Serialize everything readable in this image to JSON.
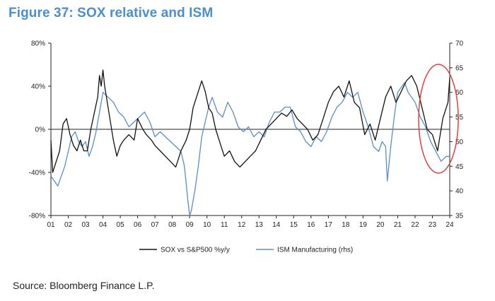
{
  "title": "Figure 37: SOX relative and ISM",
  "source": "Source: Bloomberg Finance L.P.",
  "colors": {
    "sox": "#111111",
    "ism": "#5b8ec7",
    "highlight": "#e04040",
    "axis": "#222222"
  },
  "chart_data": {
    "type": "line",
    "title": "Figure 37: SOX relative and ISM",
    "x_ticks": [
      "01",
      "02",
      "03",
      "04",
      "05",
      "06",
      "07",
      "08",
      "09",
      "10",
      "11",
      "12",
      "13",
      "14",
      "15",
      "16",
      "17",
      "18",
      "19",
      "20",
      "21",
      "22",
      "23",
      "24"
    ],
    "x_range": [
      2001.0,
      2024.0
    ],
    "y_left": {
      "ticks": [
        "80%",
        "40%",
        "0%",
        "-40%",
        "-80%"
      ],
      "values": [
        80,
        40,
        0,
        -40,
        -80
      ],
      "range": [
        -80,
        80
      ]
    },
    "y_right": {
      "ticks": [
        "70",
        "65",
        "60",
        "55",
        "50",
        "45",
        "40",
        "35"
      ],
      "values": [
        70,
        65,
        60,
        55,
        50,
        45,
        40,
        35
      ],
      "range": [
        35,
        70
      ]
    },
    "legend": [
      "SOX vs S&P500 %y/y",
      "ISM Manufacturing (rhs)"
    ],
    "legend_position": "bottom-center",
    "annotation": "red ellipse highlighting 2023-2024",
    "series": [
      {
        "name": "SOX vs S&P500 %y/y",
        "axis": "left",
        "x": [
          2001.0,
          2001.1,
          2001.3,
          2001.5,
          2001.7,
          2001.9,
          2002.1,
          2002.3,
          2002.5,
          2002.7,
          2002.9,
          2003.1,
          2003.3,
          2003.5,
          2003.7,
          2003.8,
          2003.9,
          2004.0,
          2004.1,
          2004.2,
          2004.4,
          2004.6,
          2004.8,
          2005.0,
          2005.2,
          2005.5,
          2005.8,
          2006.0,
          2006.3,
          2006.5,
          2006.8,
          2007.0,
          2007.3,
          2007.6,
          2007.9,
          2008.2,
          2008.5,
          2008.8,
          2009.0,
          2009.2,
          2009.5,
          2009.7,
          2009.9,
          2010.1,
          2010.3,
          2010.5,
          2010.8,
          2011.0,
          2011.3,
          2011.6,
          2011.9,
          2012.2,
          2012.5,
          2012.8,
          2013.1,
          2013.4,
          2013.7,
          2014.0,
          2014.3,
          2014.6,
          2014.9,
          2015.2,
          2015.5,
          2015.8,
          2016.1,
          2016.4,
          2016.7,
          2017.0,
          2017.3,
          2017.6,
          2017.9,
          2018.2,
          2018.5,
          2018.8,
          2019.1,
          2019.4,
          2019.7,
          2020.0,
          2020.3,
          2020.6,
          2020.9,
          2021.2,
          2021.5,
          2021.8,
          2022.1,
          2022.4,
          2022.7,
          2023.0,
          2023.3,
          2023.6,
          2023.9,
          2024.0
        ],
        "y": [
          -10,
          -40,
          -30,
          -20,
          5,
          10,
          -5,
          -15,
          -20,
          -10,
          -20,
          -20,
          0,
          15,
          30,
          50,
          40,
          55,
          40,
          30,
          10,
          -10,
          -25,
          -15,
          -10,
          -5,
          -10,
          10,
          0,
          -5,
          -10,
          -15,
          -20,
          -25,
          -30,
          -35,
          -20,
          -10,
          0,
          20,
          35,
          45,
          35,
          20,
          15,
          0,
          -15,
          -25,
          -20,
          -30,
          -35,
          -30,
          -25,
          -20,
          -10,
          0,
          5,
          10,
          15,
          12,
          18,
          10,
          5,
          0,
          -10,
          -5,
          10,
          25,
          35,
          40,
          30,
          45,
          25,
          20,
          -5,
          5,
          -10,
          10,
          30,
          40,
          25,
          35,
          45,
          50,
          40,
          20,
          0,
          -5,
          -20,
          10,
          25,
          48
        ]
      },
      {
        "name": "ISM Manufacturing (rhs)",
        "axis": "right",
        "x": [
          2001.0,
          2001.2,
          2001.4,
          2001.6,
          2001.8,
          2002.0,
          2002.2,
          2002.4,
          2002.6,
          2002.8,
          2003.0,
          2003.2,
          2003.4,
          2003.6,
          2003.8,
          2004.0,
          2004.3,
          2004.6,
          2004.9,
          2005.2,
          2005.5,
          2005.8,
          2006.1,
          2006.4,
          2006.7,
          2007.0,
          2007.3,
          2007.6,
          2007.9,
          2008.2,
          2008.5,
          2008.7,
          2008.9,
          2009.0,
          2009.1,
          2009.3,
          2009.5,
          2009.7,
          2009.9,
          2010.1,
          2010.3,
          2010.6,
          2010.9,
          2011.2,
          2011.5,
          2011.8,
          2012.1,
          2012.4,
          2012.7,
          2013.0,
          2013.3,
          2013.6,
          2013.9,
          2014.2,
          2014.5,
          2014.8,
          2015.1,
          2015.4,
          2015.7,
          2016.0,
          2016.3,
          2016.6,
          2016.9,
          2017.2,
          2017.5,
          2017.8,
          2018.1,
          2018.4,
          2018.7,
          2019.0,
          2019.3,
          2019.6,
          2019.9,
          2020.1,
          2020.3,
          2020.4,
          2020.6,
          2020.8,
          2021.0,
          2021.2,
          2021.4,
          2021.6,
          2021.8,
          2022.0,
          2022.3,
          2022.6,
          2022.9,
          2023.2,
          2023.5,
          2023.8,
          2024.0
        ],
        "y": [
          43,
          42,
          41,
          43,
          45,
          48,
          51,
          52,
          50,
          49,
          50,
          47,
          49,
          52,
          56,
          60,
          59,
          58,
          56,
          55,
          53,
          54,
          55,
          56,
          54,
          51,
          52,
          51,
          50,
          49,
          48,
          45,
          38,
          35,
          36,
          40,
          45,
          51,
          54,
          57,
          59,
          56,
          55,
          58,
          56,
          53,
          52,
          53,
          51,
          52,
          51,
          54,
          56,
          56,
          57,
          57,
          53,
          52,
          50,
          49,
          51,
          50,
          52,
          55,
          57,
          58,
          60,
          59,
          60,
          56,
          53,
          49,
          48,
          50,
          49,
          42,
          49,
          55,
          60,
          61,
          62,
          60,
          59,
          58,
          55,
          53,
          50,
          48,
          46,
          47,
          47
        ]
      }
    ]
  }
}
